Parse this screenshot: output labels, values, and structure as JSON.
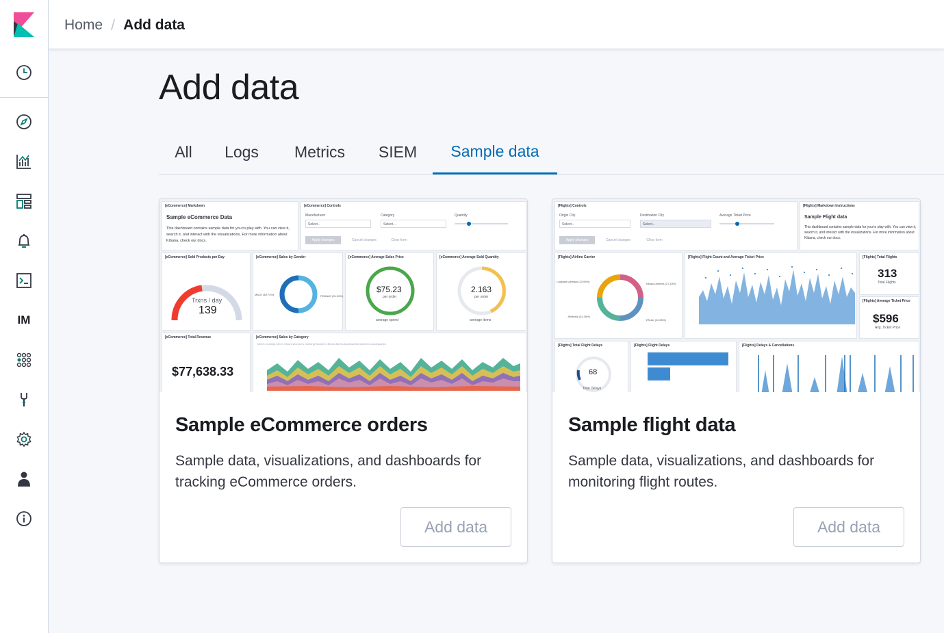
{
  "app": {
    "logo_name": "kibana-logo",
    "accent_color": "#006bb4"
  },
  "sidebar": {
    "icons": [
      {
        "name": "recently-viewed-clock-icon"
      },
      {
        "name": "discover-compass-icon"
      },
      {
        "name": "visualize-chart-icon"
      },
      {
        "name": "dashboard-icon"
      },
      {
        "name": "alerting-bell-icon"
      },
      {
        "name": "dev-tools-console-icon"
      },
      {
        "name": "infrastructure-monitoring-icon",
        "label": "IM"
      },
      {
        "name": "apps-grid-icon"
      },
      {
        "name": "dev-tools-wrench-icon"
      },
      {
        "name": "management-gear-icon"
      },
      {
        "name": "user-icon"
      },
      {
        "name": "help-info-icon"
      }
    ]
  },
  "header": {
    "breadcrumb_home": "Home",
    "breadcrumb_current": "Add data"
  },
  "main": {
    "title": "Add data",
    "tabs": [
      {
        "label": "All"
      },
      {
        "label": "Logs"
      },
      {
        "label": "Metrics"
      },
      {
        "label": "SIEM"
      },
      {
        "label": "Sample data",
        "active": true
      }
    ]
  },
  "cards": [
    {
      "title": "Sample eCommerce orders",
      "description": "Sample data, visualizations, and dashboards for tracking eCommerce orders.",
      "button_label": "Add data",
      "preview": {
        "markdown_title": "[eCommerce] Markdown",
        "heading": "Sample eCommerce Data",
        "body": "This dashboard contains sample data for you to play with. You can view it, search it, and interact with the visualizations. For more information about Kibana, check our docs.",
        "controls_title": "[eCommerce] Controls",
        "manufacturer": "Manufacturer",
        "category": "Category",
        "quantity": "Quantity",
        "select_placeholder": "Select...",
        "apply": "Apply changes",
        "cancel": "Cancel changes",
        "clear": "Clear form",
        "gauge_title": "[eCommerce] Sold Products per Day",
        "gauge_label": "Trxns / day",
        "gauge_value": "139",
        "gender_title": "[eCommerce] Sales by Gender",
        "gender_male": "MALE (48.74%)",
        "gender_female": "FEMALE (51.26%)",
        "avg_price_title": "[eCommerce] Average Sales Price",
        "avg_price": "$75.23",
        "avg_price_sub": "per order",
        "avg_price_caption": "average spend",
        "avg_qty_title": "[eCommerce] Average Sold Quantity",
        "avg_qty": "2.163",
        "avg_qty_sub": "per order",
        "avg_qty_caption": "average items",
        "revenue_title": "[eCommerce] Total Revenue",
        "revenue": "$77,638.33",
        "category_chart_title": "[eCommerce] Sales by Category",
        "category_legend": "Men's Clothing   Men's Shoes   Women's Clothing   Women's Shoes   Men's Accessories   Women's Accessories"
      }
    },
    {
      "title": "Sample flight data",
      "description": "Sample data, visualizations, and dashboards for monitoring flight routes.",
      "button_label": "Add data",
      "preview": {
        "controls_title": "[Flights] Controls",
        "origin": "Origin City",
        "destination": "Destination City",
        "avg_ticket": "Average Ticket Price",
        "select_placeholder": "Select...",
        "apply": "Apply changes",
        "cancel": "Cancel changes",
        "clear": "Clear form",
        "markdown_title": "[Flights] Markdown Instructions",
        "heading": "Sample Flight data",
        "body": "This dashboard contains sample data for you to play with. You can view it, search it, and interact with the visualizations. For more information about Kibana, check our docs.",
        "carrier_title": "[Flights] Airline Carrier",
        "carrier_a": "Logstash Airways (23.99%)",
        "carrier_b": "Kibana Airlines (27.18%)",
        "carrier_c": "JetBeats (24.28%)",
        "carrier_d": "ES-Air (24.55%)",
        "count_title": "[Flights] Flight Count and Average Ticket Price",
        "total_flights_title": "[Flights] Total Flights",
        "total_flights": "313",
        "total_flights_caption": "Total Flights",
        "avg_ticket_title": "[Flights] Average Ticket Price",
        "avg_ticket_value": "$596",
        "avg_ticket_caption": "Avg. Ticket Price",
        "delays_title": "[Flights] Total Flight Delays",
        "delays_value": "68",
        "delays_caption": "Total Delays",
        "flight_delays_title": "[Flights] Flight Delays",
        "cancellations_title": "[Flights] Delays & Cancellations"
      }
    }
  ]
}
